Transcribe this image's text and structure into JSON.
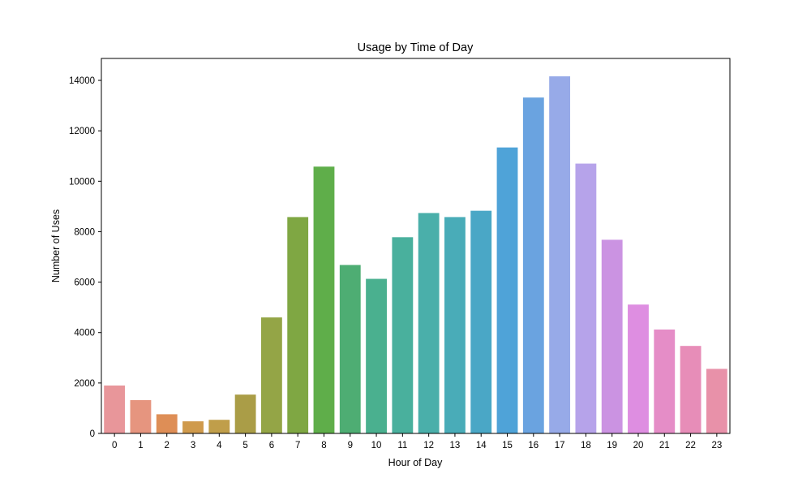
{
  "chart_data": {
    "type": "bar",
    "title": "Usage by Time of Day",
    "xlabel": "Hour of Day",
    "ylabel": "Number of Uses",
    "categories": [
      "0",
      "1",
      "2",
      "3",
      "4",
      "5",
      "6",
      "7",
      "8",
      "9",
      "10",
      "11",
      "12",
      "13",
      "14",
      "15",
      "16",
      "17",
      "18",
      "19",
      "20",
      "21",
      "22",
      "23"
    ],
    "values": [
      1900,
      1320,
      760,
      480,
      540,
      1540,
      4600,
      8580,
      10580,
      6680,
      6130,
      7780,
      8740,
      8580,
      8830,
      11340,
      13320,
      14160,
      10700,
      7680,
      5110,
      4120,
      3470,
      2560
    ],
    "colors": [
      "#e8969a",
      "#e6957f",
      "#de8e56",
      "#cf9a4c",
      "#c09e4a",
      "#aa9d47",
      "#94a546",
      "#7fa743",
      "#5fae4a",
      "#4ead73",
      "#4ab08f",
      "#49b09d",
      "#4aafaa",
      "#49acb8",
      "#4aa7c6",
      "#4fa3d8",
      "#6aa3e0",
      "#97aae8",
      "#b6a3ea",
      "#cb93e2",
      "#de8ee1",
      "#e58dc7",
      "#e78db8",
      "#e891a9"
    ],
    "yticks": [
      0,
      2000,
      4000,
      6000,
      8000,
      10000,
      12000,
      14000
    ],
    "ylim": [
      0,
      14870
    ],
    "grid": false
  }
}
